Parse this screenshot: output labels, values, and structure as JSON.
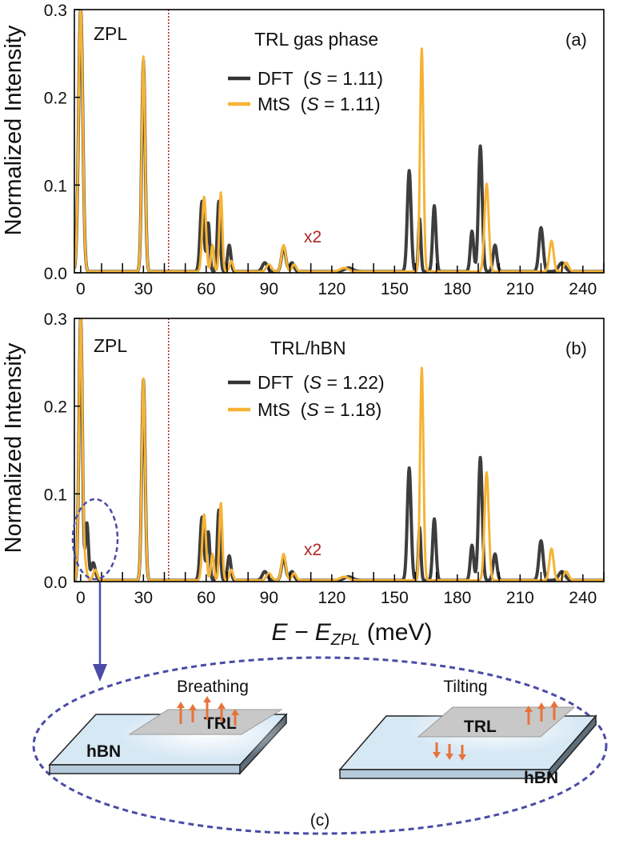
{
  "chart_data": [
    {
      "type": "line",
      "panel_label": "(a)",
      "title": "TRL gas phase",
      "ylabel": "Normalized Intensity",
      "xlim": [
        -3,
        250
      ],
      "ylim": [
        0,
        0.3
      ],
      "xticks": [
        0,
        30,
        60,
        90,
        120,
        150,
        180,
        210,
        240
      ],
      "yticks": [
        0.0,
        0.1,
        0.2,
        0.3
      ],
      "annotations": {
        "zpl": "ZPL",
        "scale_note": "x2",
        "scale_divider_x": 42
      },
      "legend_position": "top-center",
      "series": [
        {
          "name": "DFT",
          "legend_prefix": "DFT  (",
          "legend_s_symbol": "S",
          "legend_value": " = 1.11)",
          "color": "#333333",
          "peaks": [
            [
              0,
              0.3,
              1.0
            ],
            [
              30,
              0.24,
              0.8
            ],
            [
              58,
              0.08,
              0.9
            ],
            [
              61,
              0.055,
              0.7
            ],
            [
              66,
              0.08,
              0.7
            ],
            [
              71,
              0.03,
              0.8
            ],
            [
              88,
              0.01,
              1.2
            ],
            [
              97,
              0.028,
              1.0
            ],
            [
              101,
              0.01,
              1.0
            ],
            [
              128,
              0.004,
              2.0
            ],
            [
              157,
              0.115,
              0.9
            ],
            [
              162,
              0.06,
              0.6
            ],
            [
              169,
              0.075,
              0.8
            ],
            [
              187,
              0.046,
              0.8
            ],
            [
              191,
              0.143,
              0.9
            ],
            [
              198,
              0.03,
              0.9
            ],
            [
              220,
              0.05,
              1.0
            ],
            [
              230,
              0.01,
              1.5
            ]
          ]
        },
        {
          "name": "MtS",
          "legend_prefix": "MtS  (",
          "legend_s_symbol": "S",
          "legend_value": " = 1.11)",
          "color": "#F5B335",
          "peaks": [
            [
              0,
              0.3,
              1.0
            ],
            [
              30,
              0.245,
              0.8
            ],
            [
              59,
              0.085,
              0.9
            ],
            [
              63,
              0.03,
              0.7
            ],
            [
              67,
              0.09,
              0.7
            ],
            [
              72,
              0.012,
              0.8
            ],
            [
              90,
              0.008,
              1.2
            ],
            [
              97,
              0.03,
              1.0
            ],
            [
              102,
              0.008,
              1.0
            ],
            [
              126,
              0.004,
              2.0
            ],
            [
              163,
              0.254,
              0.8
            ],
            [
              194,
              0.1,
              1.0
            ],
            [
              225,
              0.035,
              1.0
            ],
            [
              232,
              0.01,
              1.2
            ]
          ]
        }
      ]
    },
    {
      "type": "line",
      "panel_label": "(b)",
      "title": "TRL/hBN",
      "xlabel_main": "E − E",
      "xlabel_sub": "ZPL",
      "xlabel_unit": " (meV)",
      "ylabel": "Normalized Intensity",
      "xlim": [
        -3,
        250
      ],
      "ylim": [
        0,
        0.3
      ],
      "xticks": [
        0,
        30,
        60,
        90,
        120,
        150,
        180,
        210,
        240
      ],
      "yticks": [
        0.0,
        0.1,
        0.2,
        0.3
      ],
      "annotations": {
        "zpl": "ZPL",
        "scale_note": "x2",
        "scale_divider_x": 42
      },
      "legend_position": "top-center",
      "series": [
        {
          "name": "DFT",
          "legend_prefix": "DFT  (",
          "legend_s_symbol": "S",
          "legend_value": " = 1.22)",
          "color": "#333333",
          "peaks": [
            [
              0,
              0.3,
              0.8
            ],
            [
              3,
              0.065,
              0.7
            ],
            [
              6,
              0.02,
              1.0
            ],
            [
              30,
              0.228,
              0.8
            ],
            [
              58,
              0.072,
              0.9
            ],
            [
              61,
              0.055,
              0.7
            ],
            [
              66,
              0.08,
              0.7
            ],
            [
              71,
              0.028,
              0.8
            ],
            [
              88,
              0.01,
              1.2
            ],
            [
              97,
              0.026,
              1.0
            ],
            [
              101,
              0.01,
              1.0
            ],
            [
              128,
              0.004,
              2.0
            ],
            [
              157,
              0.128,
              0.9
            ],
            [
              162,
              0.06,
              0.6
            ],
            [
              169,
              0.07,
              0.8
            ],
            [
              187,
              0.04,
              0.8
            ],
            [
              191,
              0.14,
              0.9
            ],
            [
              198,
              0.03,
              0.9
            ],
            [
              220,
              0.045,
              1.0
            ],
            [
              230,
              0.01,
              1.5
            ]
          ]
        },
        {
          "name": "MtS",
          "legend_prefix": "MtS  (",
          "legend_s_symbol": "S",
          "legend_value": " = 1.18)",
          "color": "#F5B335",
          "peaks": [
            [
              0,
              0.3,
              0.8
            ],
            [
              2,
              0.02,
              0.8
            ],
            [
              7,
              0.012,
              1.0
            ],
            [
              30,
              0.23,
              0.8
            ],
            [
              59,
              0.075,
              0.9
            ],
            [
              63,
              0.03,
              0.7
            ],
            [
              67,
              0.088,
              0.7
            ],
            [
              72,
              0.012,
              0.8
            ],
            [
              90,
              0.008,
              1.2
            ],
            [
              97,
              0.03,
              1.0
            ],
            [
              102,
              0.008,
              1.0
            ],
            [
              126,
              0.004,
              2.0
            ],
            [
              163,
              0.242,
              0.8
            ],
            [
              194,
              0.123,
              1.0
            ],
            [
              225,
              0.036,
              1.0
            ],
            [
              232,
              0.01,
              1.2
            ]
          ]
        }
      ]
    }
  ],
  "schematic": {
    "panel_label": "(c)",
    "left": {
      "mode": "Breathing",
      "molecule": "TRL",
      "substrate": "hBN"
    },
    "right": {
      "mode": "Tilting",
      "molecule": "TRL",
      "substrate": "hBN"
    },
    "colors": {
      "ellipse": "#4B4BA8",
      "arrow": "#E8733A",
      "slab": "#D7E8F5",
      "molecule": "#C8C8C8"
    }
  }
}
